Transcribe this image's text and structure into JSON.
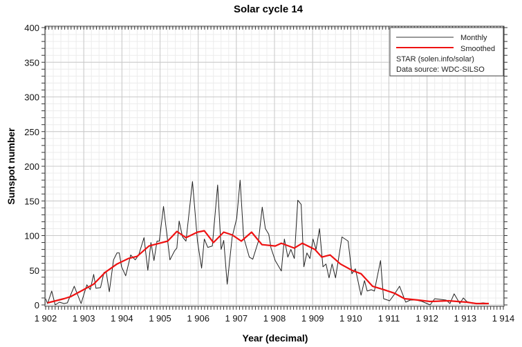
{
  "chart_data": {
    "type": "line",
    "title": "Solar cycle 14",
    "xlabel": "Year (decimal)",
    "ylabel": "Sunspot number",
    "xlim": [
      1902,
      1914
    ],
    "ylim": [
      0,
      400
    ],
    "xticks": [
      1902,
      1903,
      1904,
      1905,
      1906,
      1907,
      1908,
      1909,
      1910,
      1911,
      1912,
      1913,
      1914
    ],
    "xtick_labels": [
      "1 902",
      "1 903",
      "1 904",
      "1 905",
      "1 906",
      "1 907",
      "1 908",
      "1 909",
      "1 910",
      "1 911",
      "1 912",
      "1 913",
      "1 914"
    ],
    "yticks": [
      0,
      50,
      100,
      150,
      200,
      250,
      300,
      350,
      400
    ],
    "ytick_labels": [
      "0",
      "50",
      "100",
      "150",
      "200",
      "250",
      "300",
      "350",
      "400"
    ],
    "grid": true,
    "legend_position": "top-right",
    "legend": {
      "entries": [
        "Monthly",
        "Smoothed"
      ],
      "notes": [
        "STAR (solen.info/solar)",
        "Data source: WDC-SILSO"
      ]
    },
    "series": [
      {
        "name": "Monthly",
        "color": "#222222",
        "points": [
          [
            1902.0,
            9
          ],
          [
            1902.05,
            2
          ],
          [
            1902.16,
            20
          ],
          [
            1902.25,
            0
          ],
          [
            1902.36,
            4
          ],
          [
            1902.48,
            2
          ],
          [
            1902.57,
            3
          ],
          [
            1902.75,
            27
          ],
          [
            1902.93,
            2
          ],
          [
            1903.08,
            29
          ],
          [
            1903.17,
            22
          ],
          [
            1903.26,
            44
          ],
          [
            1903.32,
            24
          ],
          [
            1903.44,
            25
          ],
          [
            1903.53,
            47
          ],
          [
            1903.59,
            47
          ],
          [
            1903.67,
            19
          ],
          [
            1903.78,
            65
          ],
          [
            1903.87,
            75
          ],
          [
            1903.93,
            75
          ],
          [
            1903.99,
            55
          ],
          [
            1904.1,
            42
          ],
          [
            1904.23,
            72
          ],
          [
            1904.35,
            65
          ],
          [
            1904.44,
            72
          ],
          [
            1904.58,
            97
          ],
          [
            1904.68,
            50
          ],
          [
            1904.76,
            90
          ],
          [
            1904.84,
            64
          ],
          [
            1904.92,
            92
          ],
          [
            1904.98,
            92
          ],
          [
            1905.09,
            142
          ],
          [
            1905.26,
            65
          ],
          [
            1905.38,
            78
          ],
          [
            1905.44,
            82
          ],
          [
            1905.5,
            121
          ],
          [
            1905.59,
            98
          ],
          [
            1905.68,
            92
          ],
          [
            1905.85,
            178
          ],
          [
            1905.98,
            92
          ],
          [
            1906.09,
            53
          ],
          [
            1906.16,
            95
          ],
          [
            1906.25,
            83
          ],
          [
            1906.37,
            85
          ],
          [
            1906.51,
            173
          ],
          [
            1906.6,
            80
          ],
          [
            1906.67,
            93
          ],
          [
            1906.76,
            30
          ],
          [
            1906.89,
            98
          ],
          [
            1907.01,
            125
          ],
          [
            1907.1,
            180
          ],
          [
            1907.19,
            98
          ],
          [
            1907.34,
            69
          ],
          [
            1907.43,
            66
          ],
          [
            1907.58,
            92
          ],
          [
            1907.68,
            141
          ],
          [
            1907.76,
            110
          ],
          [
            1907.85,
            102
          ],
          [
            1907.91,
            82
          ],
          [
            1908.02,
            64
          ],
          [
            1908.18,
            49
          ],
          [
            1908.26,
            95
          ],
          [
            1908.35,
            69
          ],
          [
            1908.43,
            80
          ],
          [
            1908.52,
            67
          ],
          [
            1908.61,
            151
          ],
          [
            1908.7,
            145
          ],
          [
            1908.77,
            55
          ],
          [
            1908.85,
            75
          ],
          [
            1908.93,
            67
          ],
          [
            1909.01,
            95
          ],
          [
            1909.09,
            80
          ],
          [
            1909.18,
            110
          ],
          [
            1909.27,
            55
          ],
          [
            1909.35,
            59
          ],
          [
            1909.43,
            39
          ],
          [
            1909.51,
            59
          ],
          [
            1909.6,
            39
          ],
          [
            1909.77,
            98
          ],
          [
            1909.93,
            92
          ],
          [
            1910.03,
            45
          ],
          [
            1910.12,
            52
          ],
          [
            1910.27,
            14
          ],
          [
            1910.36,
            35
          ],
          [
            1910.43,
            20
          ],
          [
            1910.54,
            22
          ],
          [
            1910.62,
            20
          ],
          [
            1910.78,
            64
          ],
          [
            1910.86,
            9
          ],
          [
            1911.02,
            6
          ],
          [
            1911.14,
            15
          ],
          [
            1911.28,
            27
          ],
          [
            1911.44,
            4
          ],
          [
            1911.56,
            7
          ],
          [
            1911.72,
            7
          ],
          [
            1911.87,
            5
          ],
          [
            1912.08,
            0
          ],
          [
            1912.2,
            9
          ],
          [
            1912.35,
            8
          ],
          [
            1912.5,
            7
          ],
          [
            1912.6,
            2
          ],
          [
            1912.71,
            16
          ],
          [
            1912.86,
            2
          ],
          [
            1912.95,
            10
          ],
          [
            1913.04,
            5
          ],
          [
            1913.2,
            2
          ],
          [
            1913.32,
            2
          ],
          [
            1913.47,
            3
          ],
          [
            1913.62,
            2
          ]
        ]
      },
      {
        "name": "Smoothed",
        "color": "#ee1111",
        "points": [
          [
            1902.05,
            3
          ],
          [
            1902.48,
            9
          ],
          [
            1902.66,
            12
          ],
          [
            1902.93,
            20
          ],
          [
            1903.26,
            30
          ],
          [
            1903.56,
            47
          ],
          [
            1903.87,
            59
          ],
          [
            1904.17,
            67
          ],
          [
            1904.4,
            70
          ],
          [
            1904.71,
            85
          ],
          [
            1905.2,
            92
          ],
          [
            1905.44,
            106
          ],
          [
            1905.68,
            97
          ],
          [
            1905.98,
            105
          ],
          [
            1906.16,
            107
          ],
          [
            1906.4,
            90
          ],
          [
            1906.67,
            105
          ],
          [
            1906.89,
            101
          ],
          [
            1907.13,
            92
          ],
          [
            1907.4,
            105
          ],
          [
            1907.67,
            87
          ],
          [
            1908.02,
            85
          ],
          [
            1908.18,
            89
          ],
          [
            1908.52,
            82
          ],
          [
            1908.73,
            89
          ],
          [
            1909.06,
            80
          ],
          [
            1909.24,
            69
          ],
          [
            1909.46,
            72
          ],
          [
            1909.73,
            59
          ],
          [
            1910.03,
            50
          ],
          [
            1910.27,
            45
          ],
          [
            1910.57,
            27
          ],
          [
            1910.87,
            22
          ],
          [
            1911.14,
            17
          ],
          [
            1911.41,
            9
          ],
          [
            1911.77,
            7
          ],
          [
            1912.08,
            5
          ],
          [
            1912.56,
            6
          ],
          [
            1913.04,
            4
          ],
          [
            1913.29,
            2
          ],
          [
            1913.62,
            2
          ]
        ]
      }
    ]
  }
}
